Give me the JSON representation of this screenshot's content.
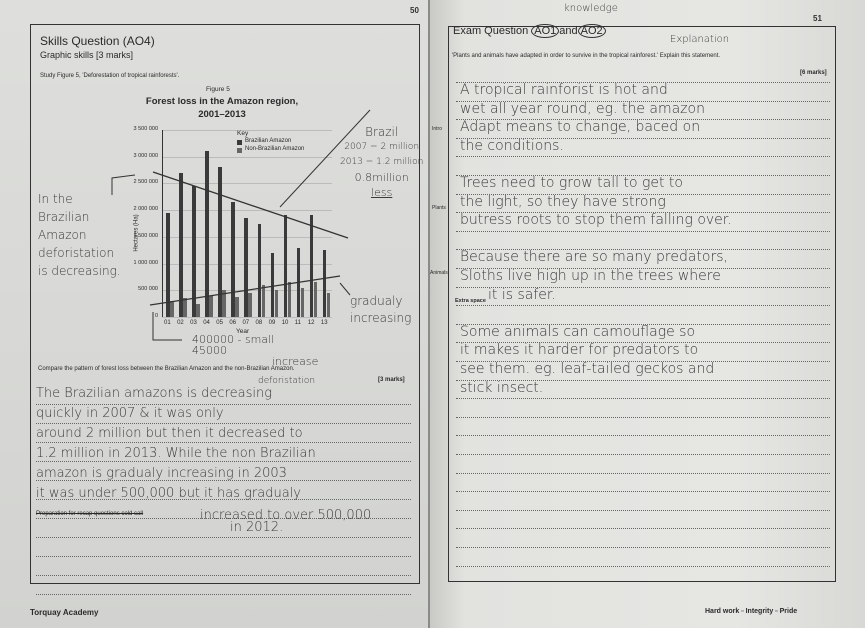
{
  "left_page": {
    "page_number": "50",
    "title": "Skills Question (AO4)",
    "subtitle": "Graphic skills [3 marks]",
    "instruction": "Study Figure 5, 'Deforestation of tropical rainforests'.",
    "question": "Compare the pattern of forest loss between the Brazilian Amazon and the non-Brazilian Amazon.",
    "marks": "[3 marks]",
    "recap_label": "Preparation for recap questions cold call",
    "footer": "Torquay Academy",
    "annotations": {
      "left_note": [
        "In the",
        "Brazilian",
        "Amazon",
        "deforistation",
        "is decreasing."
      ],
      "right_note": [
        "Brazil",
        "2007 = 2 million",
        "2013 = 1.2 million",
        "0.8million",
        "less"
      ],
      "gradual": [
        "gradualy",
        "increasing"
      ],
      "bottom_note": [
        "400000 - small",
        "45000",
        "increase"
      ]
    },
    "answer_insert": "deforistation",
    "answer_lines": [
      "The Brazilian amazons is decreasing",
      "quickly in 2007 & it was only",
      "around 2 million but then it decreased to",
      "1.2 million in 2013. While the non Brazilian",
      "amazon is gradualy increasing in 2003",
      "it was under 500,000 but it has gradualy",
      "increased to over 500,000",
      "in 2012."
    ]
  },
  "chart_data": {
    "type": "bar",
    "figure_label": "Figure 5",
    "title": "Forest loss in the Amazon region, 2001–2013",
    "xlabel": "Year",
    "ylabel": "Hectares (Ha)",
    "ylim": [
      0,
      3500000
    ],
    "yticks": [
      "0",
      "500 000",
      "1 000 000",
      "1 500 000",
      "2 000 000",
      "2 500 000",
      "3 000 000",
      "3 500 000"
    ],
    "ytick_values": [
      0,
      500000,
      1000000,
      1500000,
      2000000,
      2500000,
      3000000,
      3500000
    ],
    "categories": [
      "01",
      "02",
      "03",
      "04",
      "05",
      "06",
      "07",
      "08",
      "09",
      "10",
      "11",
      "12",
      "13"
    ],
    "legend_title": "Key",
    "legend_placement": "top",
    "grid": true,
    "series": [
      {
        "name": "Brazilian Amazon",
        "color": "#3a3a3a",
        "values": [
          1950000,
          2700000,
          2450000,
          3100000,
          2800000,
          2150000,
          1850000,
          1750000,
          1200000,
          1900000,
          1300000,
          1900000,
          1250000
        ]
      },
      {
        "name": "Non-Brazilian Amazon",
        "color": "#666666",
        "values": [
          300000,
          350000,
          250000,
          400000,
          500000,
          380000,
          450000,
          600000,
          500000,
          650000,
          550000,
          650000,
          450000
        ]
      }
    ]
  },
  "right_page": {
    "page_number": "51",
    "title_prefix": "Exam Question",
    "ao1": "AO1",
    "and": "and",
    "ao2": "AO2",
    "note_knowledge": "knowledge",
    "note_explanation": "Explanation",
    "question": "'Plants and animals have adapted in order to survive in the tropical rainforest.' Explain this statement.",
    "marks": "[6 marks]",
    "margin_labels": {
      "intro": "Intro",
      "plants": "Plants",
      "animals": "Animals"
    },
    "extra_space": "Extra space",
    "answer_lines": [
      "A tropical rainforist is hot and",
      "wet all year round, eg. the amazon",
      "Adapt means to change, baced on",
      "the conditions.",
      "",
      "Trees need to grow tall to get to",
      "the light, so they have strong",
      "butress roots to stop them falling over.",
      "",
      "Because there are so many predators,",
      "Sloths live high up in the trees where",
      "it is safer.",
      "",
      "Some animals can camouflage so",
      "it makes it harder for predators to",
      "see them. eg. leaf-tailed geckos and",
      "stick insect."
    ],
    "footer": {
      "hard_work": "Hard work",
      "integrity": "Integrity",
      "pride": "Pride"
    }
  }
}
